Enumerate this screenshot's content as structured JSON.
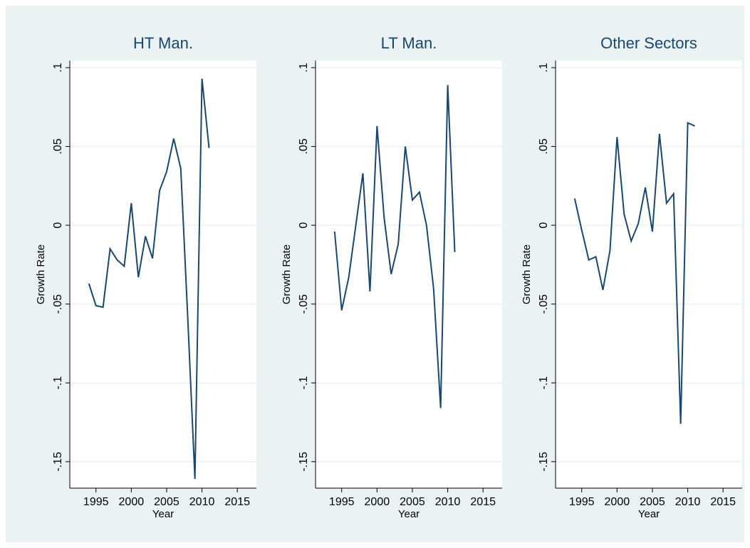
{
  "chart_data": [
    {
      "type": "line",
      "title": "HT Man.",
      "xlabel": "Year",
      "ylabel": "Growth Rate",
      "x": [
        1994,
        1995,
        1996,
        1997,
        1998,
        1999,
        2000,
        2001,
        2002,
        2003,
        2004,
        2005,
        2006,
        2007,
        2008,
        2009,
        2010,
        2011
      ],
      "series": [
        {
          "color": "#1a476f",
          "values": [
            -0.037,
            -0.051,
            -0.052,
            -0.015,
            -0.022,
            -0.026,
            0.014,
            -0.033,
            -0.007,
            -0.021,
            0.022,
            0.034,
            0.055,
            0.036,
            -0.06,
            -0.161,
            0.093,
            0.049
          ]
        }
      ],
      "xlim": [
        1991.3,
        2017.7
      ],
      "ylim": [
        -0.1668,
        0.1045
      ],
      "xticks": [
        1995,
        2000,
        2005,
        2010,
        2015
      ],
      "yticks": [
        {
          "value": -0.15,
          "label": "-.15"
        },
        {
          "value": -0.1,
          "label": "-.1"
        },
        {
          "value": -0.05,
          "label": "-.05"
        },
        0,
        {
          "value": 0.05,
          "label": ".05"
        },
        {
          "value": 0.1,
          "label": ".1"
        }
      ],
      "grid": true
    },
    {
      "type": "line",
      "title": "LT Man.",
      "xlabel": "Year",
      "ylabel": "Growth Rate",
      "x": [
        1994,
        1995,
        1996,
        1997,
        1998,
        1999,
        2000,
        2001,
        2002,
        2003,
        2004,
        2005,
        2006,
        2007,
        2008,
        2009,
        2010,
        2011
      ],
      "series": [
        {
          "color": "#1a476f",
          "values": [
            -0.004,
            -0.054,
            -0.033,
            0.0,
            0.033,
            -0.042,
            0.063,
            0.005,
            -0.031,
            -0.012,
            0.05,
            0.016,
            0.021,
            0.0,
            -0.04,
            -0.116,
            0.089,
            -0.017
          ]
        }
      ],
      "xlim": [
        1991.3,
        2017.7
      ],
      "ylim": [
        -0.1668,
        0.1045
      ],
      "xticks": [
        1995,
        2000,
        2005,
        2010,
        2015
      ],
      "yticks": [
        {
          "value": -0.15,
          "label": "-.15"
        },
        {
          "value": -0.1,
          "label": "-.1"
        },
        {
          "value": -0.05,
          "label": "-.05"
        },
        0,
        {
          "value": 0.05,
          "label": ".05"
        },
        {
          "value": 0.1,
          "label": ".1"
        }
      ],
      "grid": true
    },
    {
      "type": "line",
      "title": "Other Sectors",
      "xlabel": "Year",
      "ylabel": "Growth Rate",
      "x": [
        1994,
        1995,
        1996,
        1997,
        1998,
        1999,
        2000,
        2001,
        2002,
        2003,
        2004,
        2005,
        2006,
        2007,
        2008,
        2009,
        2010,
        2011
      ],
      "series": [
        {
          "color": "#1a476f",
          "values": [
            0.017,
            -0.003,
            -0.022,
            -0.02,
            -0.041,
            -0.016,
            0.056,
            0.007,
            -0.01,
            0.001,
            0.024,
            -0.004,
            0.058,
            0.014,
            0.02,
            -0.126,
            0.065,
            0.063
          ]
        }
      ],
      "xlim": [
        1991.3,
        2017.7
      ],
      "ylim": [
        -0.1668,
        0.1045
      ],
      "xticks": [
        1995,
        2000,
        2005,
        2010,
        2015
      ],
      "yticks": [
        {
          "value": -0.15,
          "label": "-.15"
        },
        {
          "value": -0.1,
          "label": "-.1"
        },
        {
          "value": -0.05,
          "label": "-.05"
        },
        0,
        {
          "value": 0.05,
          "label": ".05"
        },
        {
          "value": 0.1,
          "label": ".1"
        }
      ],
      "grid": true
    }
  ]
}
